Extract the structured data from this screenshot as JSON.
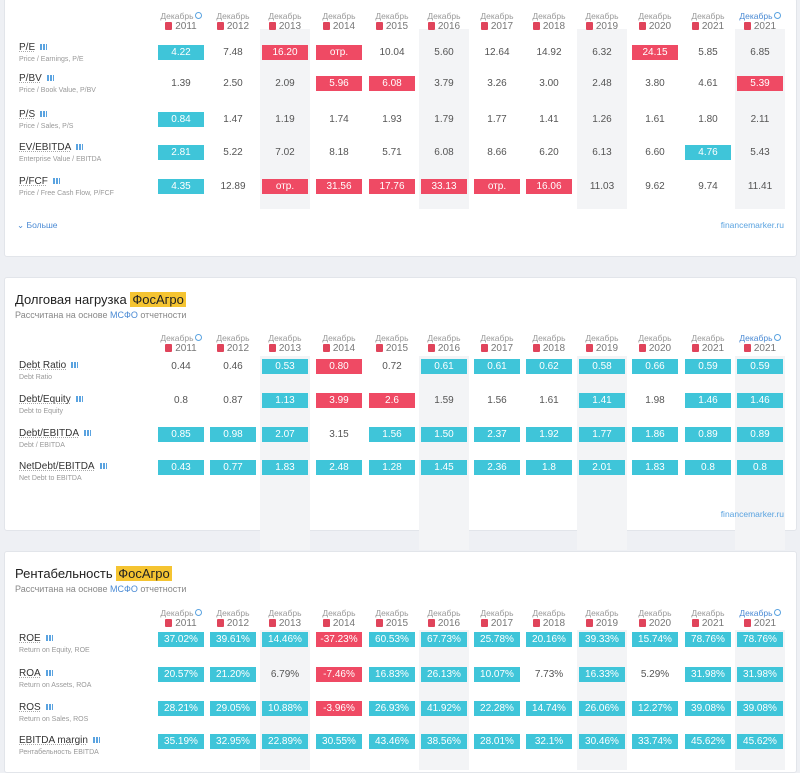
{
  "months": [
    "Декабрь",
    "Декабрь",
    "Декабрь",
    "Декабрь",
    "Декабрь",
    "Декабрь",
    "Декабрь",
    "Декабрь",
    "Декабрь",
    "Декабрь",
    "Декабрь",
    "Декабрь"
  ],
  "years": [
    "2011",
    "2012",
    "2013",
    "2014",
    "2015",
    "2016",
    "2017",
    "2018",
    "2019",
    "2020",
    "2021",
    "2021"
  ],
  "source": "financemarker.ru",
  "card1": {
    "more": "Больше",
    "rows": [
      {
        "name": "P/E",
        "sub": "Price / Earnings, P/E",
        "cells": [
          [
            "4.22",
            "g"
          ],
          [
            "7.48",
            ""
          ],
          [
            "16.20",
            "r"
          ],
          [
            "отр.",
            "r"
          ],
          [
            "10.04",
            ""
          ],
          [
            "5.60",
            ""
          ],
          [
            "12.64",
            ""
          ],
          [
            "14.92",
            ""
          ],
          [
            "6.32",
            ""
          ],
          [
            "24.15",
            "r"
          ],
          [
            "5.85",
            ""
          ],
          [
            "6.85",
            ""
          ]
        ]
      },
      {
        "name": "P/BV",
        "sub": "Price / Book Value, P/BV",
        "cells": [
          [
            "1.39",
            ""
          ],
          [
            "2.50",
            ""
          ],
          [
            "2.09",
            ""
          ],
          [
            "5.96",
            "r"
          ],
          [
            "6.08",
            "r"
          ],
          [
            "3.79",
            ""
          ],
          [
            "3.26",
            ""
          ],
          [
            "3.00",
            ""
          ],
          [
            "2.48",
            ""
          ],
          [
            "3.80",
            ""
          ],
          [
            "4.61",
            ""
          ],
          [
            "5.39",
            "r"
          ]
        ]
      },
      {
        "name": "P/S",
        "sub": "Price / Sales, P/S",
        "cells": [
          [
            "0.84",
            "g"
          ],
          [
            "1.47",
            ""
          ],
          [
            "1.19",
            ""
          ],
          [
            "1.74",
            ""
          ],
          [
            "1.93",
            ""
          ],
          [
            "1.79",
            ""
          ],
          [
            "1.77",
            ""
          ],
          [
            "1.41",
            ""
          ],
          [
            "1.26",
            ""
          ],
          [
            "1.61",
            ""
          ],
          [
            "1.80",
            ""
          ],
          [
            "2.11",
            ""
          ]
        ]
      },
      {
        "name": "EV/EBITDA",
        "sub": "Enterprise Value / EBITDA",
        "cells": [
          [
            "2.81",
            "g"
          ],
          [
            "5.22",
            ""
          ],
          [
            "7.02",
            ""
          ],
          [
            "8.18",
            ""
          ],
          [
            "5.71",
            ""
          ],
          [
            "6.08",
            ""
          ],
          [
            "8.66",
            ""
          ],
          [
            "6.20",
            ""
          ],
          [
            "6.13",
            ""
          ],
          [
            "6.60",
            ""
          ],
          [
            "4.76",
            "g"
          ],
          [
            "5.43",
            ""
          ]
        ]
      },
      {
        "name": "P/FCF",
        "sub": "Price / Free Cash Flow, P/FCF",
        "cells": [
          [
            "4.35",
            "g"
          ],
          [
            "12.89",
            ""
          ],
          [
            "отр.",
            "r"
          ],
          [
            "31.56",
            "r"
          ],
          [
            "17.76",
            "r"
          ],
          [
            "33.13",
            "r"
          ],
          [
            "отр.",
            "r"
          ],
          [
            "16.06",
            "r"
          ],
          [
            "11.03",
            ""
          ],
          [
            "9.62",
            ""
          ],
          [
            "9.74",
            ""
          ],
          [
            "11.41",
            ""
          ]
        ]
      }
    ]
  },
  "card2": {
    "title_text": "Долговая нагрузка",
    "title_company": "ФосАгро",
    "subtitle_pre": "Рассчитана на основе",
    "subtitle_link": "МСФО",
    "subtitle_post": "отчетности",
    "rows": [
      {
        "name": "Debt Ratio",
        "sub": "Debt Ratio",
        "cells": [
          [
            "0.44",
            ""
          ],
          [
            "0.46",
            ""
          ],
          [
            "0.53",
            "g"
          ],
          [
            "0.80",
            "r"
          ],
          [
            "0.72",
            ""
          ],
          [
            "0.61",
            "g"
          ],
          [
            "0.61",
            "g"
          ],
          [
            "0.62",
            "g"
          ],
          [
            "0.58",
            "g"
          ],
          [
            "0.66",
            "g"
          ],
          [
            "0.59",
            "g"
          ],
          [
            "0.59",
            "g"
          ]
        ]
      },
      {
        "name": "Debt/Equity",
        "sub": "Debt to Equity",
        "cells": [
          [
            "0.8",
            ""
          ],
          [
            "0.87",
            ""
          ],
          [
            "1.13",
            "g"
          ],
          [
            "3.99",
            "r"
          ],
          [
            "2.6",
            "r"
          ],
          [
            "1.59",
            ""
          ],
          [
            "1.56",
            ""
          ],
          [
            "1.61",
            ""
          ],
          [
            "1.41",
            "g"
          ],
          [
            "1.98",
            ""
          ],
          [
            "1.46",
            "g"
          ],
          [
            "1.46",
            "g"
          ]
        ]
      },
      {
        "name": "Debt/EBITDA",
        "sub": "Debt / EBITDA",
        "cells": [
          [
            "0.85",
            "g"
          ],
          [
            "0.98",
            "g"
          ],
          [
            "2.07",
            "g"
          ],
          [
            "3.15",
            ""
          ],
          [
            "1.56",
            "g"
          ],
          [
            "1.50",
            "g"
          ],
          [
            "2.37",
            "g"
          ],
          [
            "1.92",
            "g"
          ],
          [
            "1.77",
            "g"
          ],
          [
            "1.86",
            "g"
          ],
          [
            "0.89",
            "g"
          ],
          [
            "0.89",
            "g"
          ]
        ]
      },
      {
        "name": "NetDebt/EBITDA",
        "sub": "Net Debt to EBITDA",
        "cells": [
          [
            "0.43",
            "g"
          ],
          [
            "0.77",
            "g"
          ],
          [
            "1.83",
            "g"
          ],
          [
            "2.48",
            "g"
          ],
          [
            "1.28",
            "g"
          ],
          [
            "1.45",
            "g"
          ],
          [
            "2.36",
            "g"
          ],
          [
            "1.8",
            "g"
          ],
          [
            "2.01",
            "g"
          ],
          [
            "1.83",
            "g"
          ],
          [
            "0.8",
            "g"
          ],
          [
            "0.8",
            "g"
          ]
        ]
      }
    ]
  },
  "card3": {
    "title_text": "Рентабельность",
    "title_company": "ФосАгро",
    "subtitle_pre": "Рассчитана на основе",
    "subtitle_link": "МСФО",
    "subtitle_post": "отчетности",
    "rows": [
      {
        "name": "ROE",
        "sub": "Return on Equity, ROE",
        "cells": [
          [
            "37.02%",
            "g"
          ],
          [
            "39.61%",
            "g"
          ],
          [
            "14.46%",
            "g"
          ],
          [
            "-37.23%",
            "r"
          ],
          [
            "60.53%",
            "g"
          ],
          [
            "67.73%",
            "g"
          ],
          [
            "25.78%",
            "g"
          ],
          [
            "20.16%",
            "g"
          ],
          [
            "39.33%",
            "g"
          ],
          [
            "15.74%",
            "g"
          ],
          [
            "78.76%",
            "g"
          ],
          [
            "78.76%",
            "g"
          ]
        ]
      },
      {
        "name": "ROA",
        "sub": "Return on Assets, ROA",
        "cells": [
          [
            "20.57%",
            "g"
          ],
          [
            "21.20%",
            "g"
          ],
          [
            "6.79%",
            ""
          ],
          [
            "-7.46%",
            "r"
          ],
          [
            "16.83%",
            "g"
          ],
          [
            "26.13%",
            "g"
          ],
          [
            "10.07%",
            "g"
          ],
          [
            "7.73%",
            ""
          ],
          [
            "16.33%",
            "g"
          ],
          [
            "5.29%",
            ""
          ],
          [
            "31.98%",
            "g"
          ],
          [
            "31.98%",
            "g"
          ]
        ]
      },
      {
        "name": "ROS",
        "sub": "Return on Sales, ROS",
        "cells": [
          [
            "28.21%",
            "g"
          ],
          [
            "29.05%",
            "g"
          ],
          [
            "10.88%",
            "g"
          ],
          [
            "-3.96%",
            "r"
          ],
          [
            "26.93%",
            "g"
          ],
          [
            "41.92%",
            "g"
          ],
          [
            "22.28%",
            "g"
          ],
          [
            "14.74%",
            "g"
          ],
          [
            "26.06%",
            "g"
          ],
          [
            "12.27%",
            "g"
          ],
          [
            "39.08%",
            "g"
          ],
          [
            "39.08%",
            "g"
          ]
        ]
      },
      {
        "name": "EBITDA margin",
        "sub": "Рентабельность EBITDA",
        "cells": [
          [
            "35.19%",
            "g"
          ],
          [
            "32.95%",
            "g"
          ],
          [
            "22.89%",
            "g"
          ],
          [
            "30.55%",
            "g"
          ],
          [
            "43.46%",
            "g"
          ],
          [
            "38.56%",
            "g"
          ],
          [
            "28.01%",
            "g"
          ],
          [
            "32.1%",
            "g"
          ],
          [
            "30.46%",
            "g"
          ],
          [
            "33.74%",
            "g"
          ],
          [
            "45.62%",
            "g"
          ],
          [
            "45.62%",
            "g"
          ]
        ]
      }
    ]
  }
}
